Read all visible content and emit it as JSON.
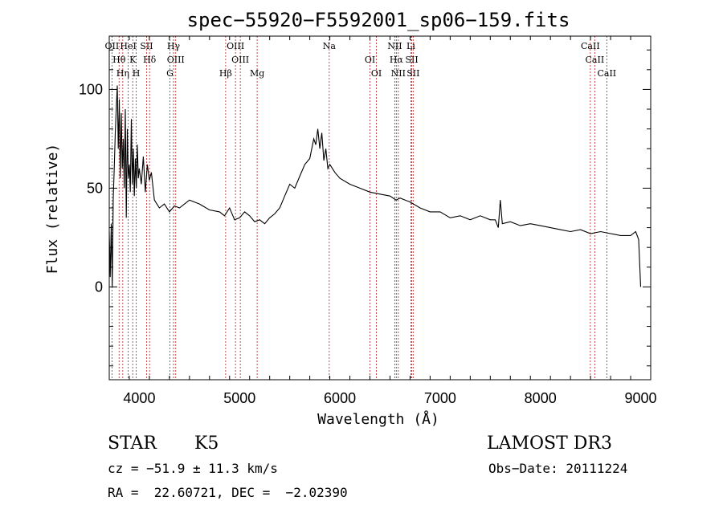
{
  "chart_data": {
    "type": "line",
    "title": "spec−55920−F5592001_sp06−159.fits",
    "xlabel": "Wavelength (Å)",
    "ylabel": "Flux (relative)",
    "xlim": [
      3700,
      9100
    ],
    "ylim": [
      -47,
      127
    ],
    "x_ticks": [
      4000,
      5000,
      6000,
      7000,
      8000,
      9000
    ],
    "y_ticks": [
      0,
      50,
      100
    ],
    "grid": false,
    "series": [
      {
        "color": "#000000",
        "x": [
          3700,
          3710,
          3720,
          3730,
          3740,
          3750,
          3760,
          3770,
          3780,
          3790,
          3800,
          3810,
          3820,
          3830,
          3840,
          3850,
          3860,
          3870,
          3880,
          3890,
          3900,
          3910,
          3920,
          3930,
          3940,
          3950,
          3960,
          3970,
          3980,
          3990,
          4000,
          4020,
          4040,
          4060,
          4080,
          4100,
          4120,
          4150,
          4200,
          4250,
          4300,
          4350,
          4400,
          4500,
          4600,
          4700,
          4800,
          4850,
          4900,
          4950,
          5000,
          5050,
          5100,
          5150,
          5200,
          5250,
          5300,
          5350,
          5400,
          5450,
          5500,
          5550,
          5600,
          5650,
          5700,
          5740,
          5760,
          5780,
          5800,
          5820,
          5840,
          5860,
          5880,
          5900,
          5950,
          6000,
          6100,
          6200,
          6300,
          6400,
          6500,
          6560,
          6600,
          6700,
          6800,
          6900,
          7000,
          7100,
          7200,
          7300,
          7400,
          7500,
          7550,
          7580,
          7600,
          7620,
          7700,
          7800,
          7900,
          8000,
          8100,
          8200,
          8300,
          8400,
          8500,
          8600,
          8700,
          8800,
          8900,
          8950,
          8980,
          9000
        ],
        "y": [
          28,
          5,
          32,
          0,
          45,
          60,
          78,
          90,
          102,
          70,
          95,
          55,
          88,
          60,
          75,
          50,
          90,
          35,
          80,
          55,
          62,
          48,
          85,
          52,
          70,
          46,
          65,
          50,
          72,
          55,
          60,
          52,
          66,
          48,
          62,
          54,
          58,
          44,
          40,
          42,
          38,
          41,
          40,
          44,
          42,
          39,
          38,
          36,
          40,
          34,
          35,
          38,
          36,
          33,
          34,
          32,
          35,
          37,
          40,
          46,
          52,
          50,
          56,
          62,
          65,
          75,
          72,
          80,
          70,
          78,
          64,
          70,
          60,
          62,
          58,
          55,
          52,
          50,
          48,
          47,
          46,
          44,
          45,
          43,
          40,
          38,
          38,
          35,
          36,
          34,
          36,
          34,
          34,
          30,
          44,
          32,
          33,
          31,
          32,
          31,
          30,
          29,
          28,
          29,
          27,
          28,
          27,
          26,
          26,
          28,
          24,
          0
        ]
      }
    ],
    "lines": [
      {
        "label": "OII",
        "wave": 3727
      },
      {
        "label": "Hθ",
        "wave": 3798
      },
      {
        "label": "Hη",
        "wave": 3835
      },
      {
        "label": "HeI",
        "wave": 3889
      },
      {
        "label": "K",
        "wave": 3934
      },
      {
        "label": "H",
        "wave": 3969
      },
      {
        "label": "SII",
        "wave": 4072
      },
      {
        "label": "Hδ",
        "wave": 4102
      },
      {
        "label": "G",
        "wave": 4305
      },
      {
        "label": "Hγ",
        "wave": 4341
      },
      {
        "label": "OIII",
        "wave": 4363
      },
      {
        "label": "Hβ",
        "wave": 4861
      },
      {
        "label": "OIII",
        "wave": 4959
      },
      {
        "label": "OIII",
        "wave": 5007
      },
      {
        "label": "Mg",
        "wave": 5175
      },
      {
        "label": "Na",
        "wave": 5894
      },
      {
        "label": "OI",
        "wave": 6300
      },
      {
        "label": "OI",
        "wave": 6364
      },
      {
        "label": "NII",
        "wave": 6548
      },
      {
        "label": "Hα",
        "wave": 6563
      },
      {
        "label": "NII",
        "wave": 6583
      },
      {
        "label": "Li",
        "wave": 6708
      },
      {
        "label": "SII",
        "wave": 6717
      },
      {
        "label": "SII",
        "wave": 6731
      },
      {
        "label": "CaII",
        "wave": 8498
      },
      {
        "label": "CaII",
        "wave": 8542
      },
      {
        "label": "CaII",
        "wave": 8662
      }
    ]
  },
  "info": {
    "class": "STAR",
    "subclass": "K5",
    "survey": "LAMOST DR3",
    "cz": "cz = −51.9 ± 11.3 km/s",
    "obs_date": "Obs−Date: 20111224",
    "radec": "RA =  22.60721, DEC =  −2.02390"
  },
  "colors": {
    "spectrum": "#000000",
    "line_markers": "#b22222"
  }
}
